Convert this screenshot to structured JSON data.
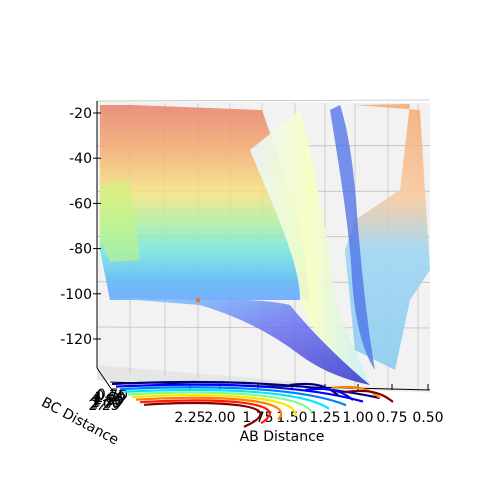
{
  "chart_data": {
    "type": "surface3d",
    "title": "",
    "zlabel": "",
    "xlabel": "AB Distance",
    "ylabel": "BC Distance",
    "z_ticks": [
      "-20",
      "-40",
      "-60",
      "-80",
      "-100",
      "-120"
    ],
    "x_ticks": [
      "2.25",
      "2.00",
      "1.75",
      "1.50",
      "1.25",
      "1.00",
      "0.75",
      "0.50"
    ],
    "y_ticks": [
      "0.50",
      "0.75",
      "1.00",
      "1.25",
      "1.50",
      "1.75",
      "2.00",
      "2.25"
    ],
    "zlim": [
      -135,
      -18
    ],
    "xlim": [
      0.5,
      2.3
    ],
    "colormap": "jet",
    "marker": {
      "ab": 2.1,
      "bc": 0.6,
      "energy": -103,
      "color": "#e07b39"
    },
    "grid": true,
    "contour_colors": [
      "#00007f",
      "#0000ff",
      "#007fff",
      "#00e5ff",
      "#7fff7f",
      "#ffe500",
      "#ff7f00",
      "#ff1a00",
      "#7f0000"
    ]
  }
}
